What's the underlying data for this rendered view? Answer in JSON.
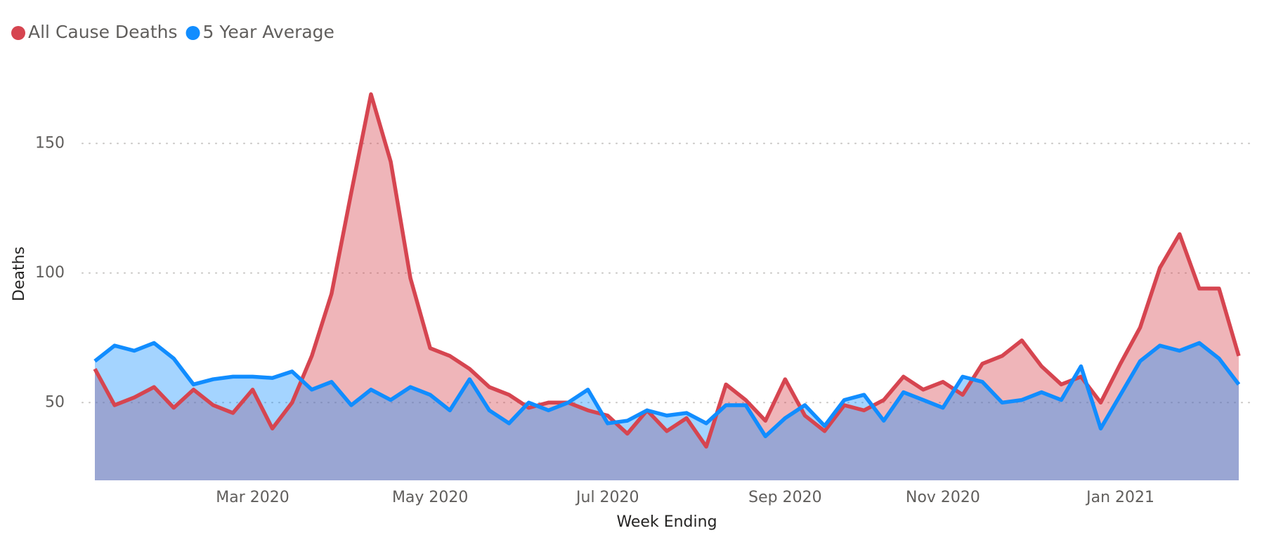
{
  "chart_data": {
    "type": "area",
    "x_label": "Week Ending",
    "y_label": "Deaths",
    "categories": [
      null,
      null,
      null,
      null,
      null,
      null,
      null,
      null,
      "Mar 2020",
      null,
      null,
      null,
      null,
      null,
      null,
      null,
      null,
      "May 2020",
      null,
      null,
      null,
      null,
      null,
      null,
      null,
      null,
      "Jul 2020",
      null,
      null,
      null,
      null,
      null,
      null,
      null,
      null,
      "Sep 2020",
      null,
      null,
      null,
      null,
      null,
      null,
      null,
      "Nov 2020",
      null,
      null,
      null,
      null,
      null,
      null,
      null,
      null,
      "Jan 2021",
      null,
      null,
      null,
      null,
      null,
      null
    ],
    "series": [
      {
        "name": "All Cause Deaths",
        "color": "#d64550",
        "values": [
          63,
          49,
          52,
          56,
          48,
          55,
          49,
          46,
          55,
          40,
          50,
          68,
          92,
          131,
          169,
          143,
          98,
          71,
          68,
          63,
          56,
          53,
          48,
          50,
          50,
          47,
          45,
          38,
          47,
          39,
          44,
          33,
          57,
          51,
          43,
          59,
          45,
          39,
          49,
          47,
          51,
          60,
          55,
          58,
          53,
          65,
          68,
          74,
          64,
          57,
          60,
          50,
          65,
          79,
          102,
          115,
          94,
          94,
          68
        ]
      },
      {
        "name": "5 Year Average",
        "color": "#118dff",
        "values": [
          66,
          72,
          70,
          73,
          67,
          57,
          59,
          60,
          60,
          59.5,
          62,
          55,
          58,
          49,
          55,
          51,
          56,
          53,
          47,
          59,
          47,
          42,
          50,
          47,
          50,
          55,
          42,
          43,
          47,
          45,
          46,
          42,
          49,
          49,
          37,
          44,
          49,
          41,
          51,
          53,
          43,
          54,
          51,
          48,
          60,
          58,
          50,
          51,
          54,
          51,
          64,
          40,
          53,
          66,
          72,
          70,
          73,
          67,
          57
        ]
      }
    ],
    "ylim": [
      20,
      175
    ],
    "yticks": [
      50,
      100,
      150
    ],
    "grid": true,
    "legend": "top-left"
  }
}
